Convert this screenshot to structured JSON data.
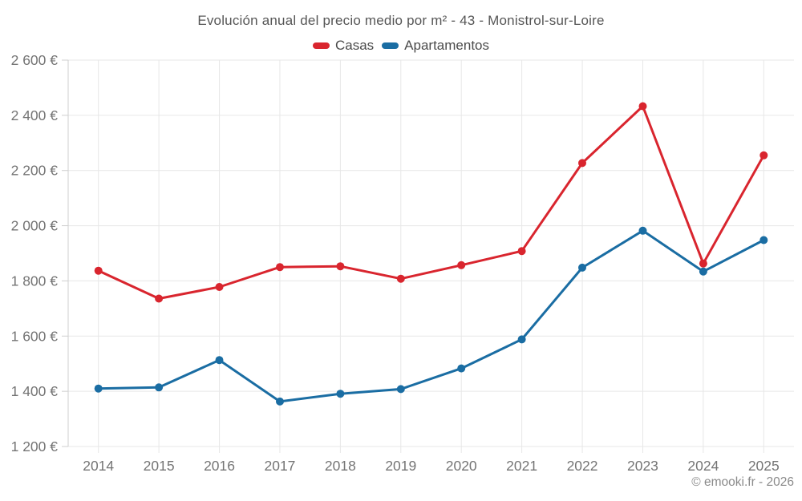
{
  "page": {
    "title": "Evolución anual del precio medio por m² - 43 - Monistrol-sur-Loire",
    "attribution": "© emooki.fr - 2026"
  },
  "legend": {
    "items": [
      "Casas",
      "Apartamentos"
    ]
  },
  "chart_data": {
    "type": "line",
    "title": "Evolución anual del precio medio por m² - 43 - Monistrol-sur-Loire",
    "xlabel": "",
    "ylabel": "",
    "currency_suffix": "€",
    "grid": true,
    "legend_position": "top",
    "categories": [
      "2014",
      "2015",
      "2016",
      "2017",
      "2018",
      "2019",
      "2020",
      "2021",
      "2022",
      "2023",
      "2024",
      "2025"
    ],
    "series": [
      {
        "name": "Casas",
        "color": "#d9252e",
        "values": [
          1837,
          1736,
          1778,
          1850,
          1853,
          1808,
          1857,
          1908,
          2227,
          2433,
          1863,
          2255
        ]
      },
      {
        "name": "Apartamentos",
        "color": "#1a6da3",
        "values": [
          1410,
          1414,
          1513,
          1363,
          1391,
          1408,
          1483,
          1588,
          1848,
          1982,
          1834,
          1948
        ]
      }
    ],
    "ylim": [
      1200,
      2600
    ],
    "y_tick_values": [
      1200,
      1400,
      1600,
      1800,
      2000,
      2200,
      2400,
      2600
    ],
    "y_tick_labels": [
      "1 200 €",
      "1 400 €",
      "1 600 €",
      "1 800 €",
      "2 000 €",
      "2 200 €",
      "2 400 €",
      "2 600 €"
    ]
  }
}
